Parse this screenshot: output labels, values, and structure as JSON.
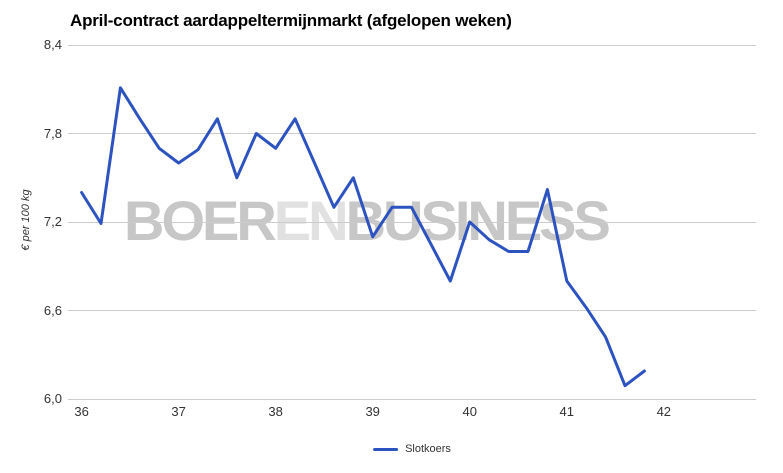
{
  "title": "April-contract aardappeltermijnmarkt (afgelopen weken)",
  "watermark": {
    "part1": "BOER",
    "part2": "EN",
    "part3": "BUSINESS"
  },
  "colors": {
    "line": "#2c53c0",
    "grid": "#cccccc",
    "title_text": "#000000",
    "axis_text": "#333333",
    "watermark_dark": "#c7c7c7",
    "watermark_light": "#e1e1e1"
  },
  "chart_data": {
    "type": "line",
    "title": "April-contract aardappeltermijnmarkt (afgelopen weken)",
    "xlabel": "",
    "ylabel": "€ per 100 kg",
    "ylim": [
      6.0,
      8.4
    ],
    "xlim": [
      35.86,
      42.95
    ],
    "y_ticks": [
      8.4,
      7.8,
      7.2,
      6.6,
      6.0
    ],
    "y_tick_labels": [
      "8,4",
      "7,8",
      "7,2",
      "6,6",
      "6,0"
    ],
    "x_ticks": [
      36,
      37,
      38,
      39,
      40,
      41,
      42
    ],
    "x_tick_labels": [
      "36",
      "37",
      "38",
      "39",
      "40",
      "41",
      "42"
    ],
    "grid": "horizontal-only",
    "legend_position": "bottom-center",
    "x_start_week": 36,
    "x_step_weeks": 0.2,
    "series": [
      {
        "name": "Slotkoers",
        "values": [
          7.4,
          7.19,
          8.11,
          7.9,
          7.7,
          7.6,
          7.69,
          7.9,
          7.5,
          7.8,
          7.7,
          7.9,
          7.6,
          7.3,
          7.5,
          7.1,
          7.3,
          7.3,
          7.05,
          6.8,
          7.2,
          7.08,
          7.0,
          7.0,
          7.42,
          6.8,
          6.62,
          6.42,
          6.09,
          6.19
        ]
      }
    ]
  }
}
